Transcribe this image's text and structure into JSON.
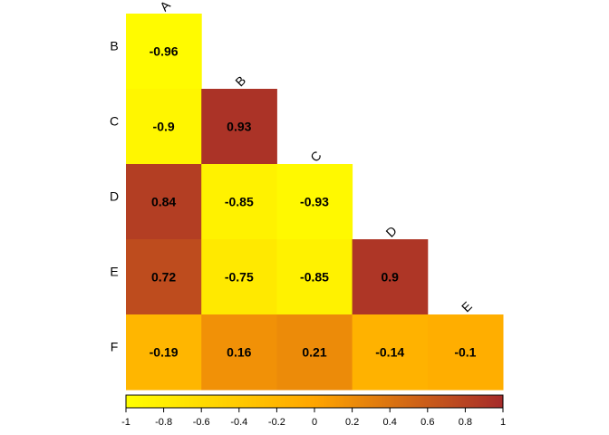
{
  "chart_data": {
    "type": "heatmap",
    "subtype": "lower-triangular correlation matrix",
    "columns": [
      "A",
      "B",
      "C",
      "D",
      "E"
    ],
    "rows": [
      "B",
      "C",
      "D",
      "E",
      "F"
    ],
    "values": [
      [
        -0.96,
        null,
        null,
        null,
        null
      ],
      [
        -0.9,
        0.93,
        null,
        null,
        null
      ],
      [
        0.84,
        -0.85,
        -0.93,
        null,
        null
      ],
      [
        0.72,
        -0.75,
        -0.85,
        0.9,
        null
      ],
      [
        -0.19,
        0.16,
        0.21,
        -0.14,
        -0.1
      ]
    ],
    "color_scale": {
      "domain": [
        -1,
        1
      ],
      "colors": [
        "#ffff00",
        "#ffa500",
        "#a52a2a"
      ],
      "ticks": [
        -1,
        -0.8,
        -0.6,
        -0.4,
        -0.2,
        0,
        0.2,
        0.4,
        0.6,
        0.8,
        1
      ],
      "tick_labels": [
        "-1",
        "-0.8",
        "-0.6",
        "-0.4",
        "-0.2",
        "0",
        "0.2",
        "0.4",
        "0.6",
        "0.8",
        "1"
      ]
    },
    "legend_position": "bottom",
    "grid": false
  }
}
